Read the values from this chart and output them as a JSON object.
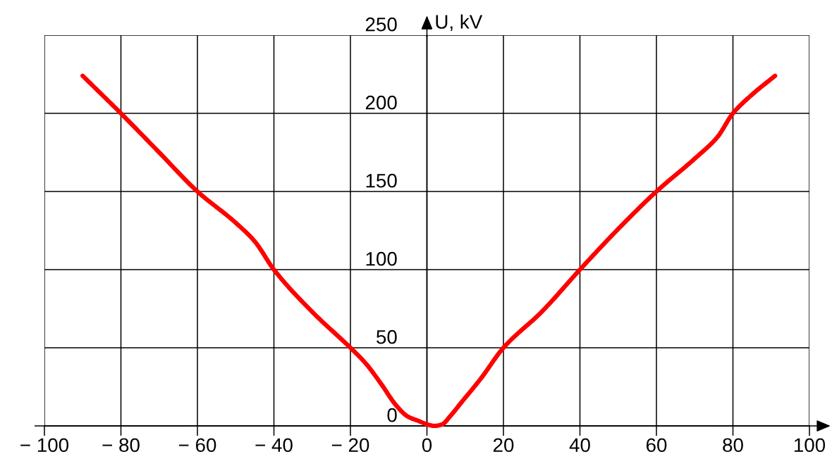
{
  "chart_data": {
    "type": "line",
    "ylabel": "U, kV",
    "x": [
      -90,
      -80,
      -70,
      -60,
      -50,
      -45,
      -40,
      -30,
      -20,
      -16,
      -12,
      -8,
      -5,
      -2,
      0,
      2,
      4,
      6,
      9,
      14,
      20,
      30,
      40,
      50,
      60,
      70,
      76,
      80,
      85,
      91
    ],
    "series": [
      {
        "color": "#ff0000",
        "values": [
          224,
          200,
          175,
          150,
          130,
          118,
          100,
          73,
          50,
          40,
          27,
          13,
          6,
          3,
          1,
          0,
          1,
          6,
          15,
          30,
          50,
          73,
          100,
          126,
          150,
          171,
          185,
          200,
          212,
          224
        ]
      }
    ],
    "xlim": [
      -100,
      100
    ],
    "xticks": [
      {
        "value": -100,
        "label": "− 100"
      },
      {
        "value": -80,
        "label": "− 80"
      },
      {
        "value": -60,
        "label": "− 60"
      },
      {
        "value": -40,
        "label": "− 40"
      },
      {
        "value": -20,
        "label": "− 20"
      },
      0,
      20,
      40,
      60,
      80,
      100
    ],
    "ylim": [
      0,
      250
    ],
    "yticks": [
      0,
      50,
      100,
      150,
      200,
      250
    ],
    "grid": true,
    "marker": "none",
    "line_style": "solid"
  }
}
